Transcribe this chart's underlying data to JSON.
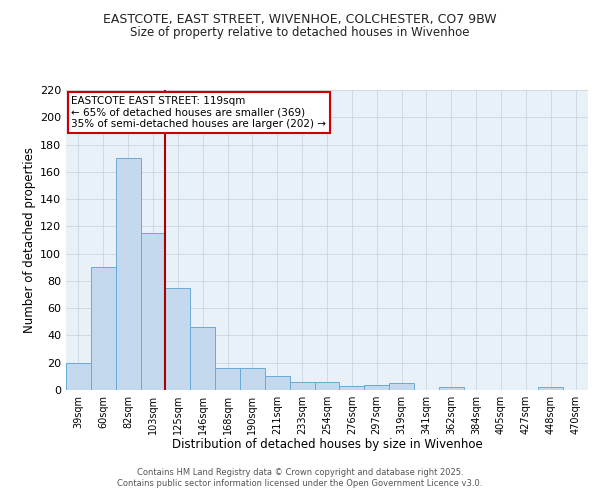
{
  "title_line1": "EASTCOTE, EAST STREET, WIVENHOE, COLCHESTER, CO7 9BW",
  "title_line2": "Size of property relative to detached houses in Wivenhoe",
  "xlabel": "Distribution of detached houses by size in Wivenhoe",
  "ylabel": "Number of detached properties",
  "bin_labels": [
    "39sqm",
    "60sqm",
    "82sqm",
    "103sqm",
    "125sqm",
    "146sqm",
    "168sqm",
    "190sqm",
    "211sqm",
    "233sqm",
    "254sqm",
    "276sqm",
    "297sqm",
    "319sqm",
    "341sqm",
    "362sqm",
    "384sqm",
    "405sqm",
    "427sqm",
    "448sqm",
    "470sqm"
  ],
  "bar_values": [
    20,
    90,
    170,
    115,
    75,
    46,
    16,
    16,
    10,
    6,
    6,
    3,
    4,
    5,
    0,
    2,
    0,
    0,
    0,
    2,
    0
  ],
  "bar_color": "#c5d9ee",
  "bar_edge_color": "#6aaad4",
  "red_line_x": 3.5,
  "annotation_title": "EASTCOTE EAST STREET: 119sqm",
  "annotation_line1": "← 65% of detached houses are smaller (369)",
  "annotation_line2": "35% of semi-detached houses are larger (202) →",
  "annotation_box_color": "#ffffff",
  "annotation_box_edge_color": "#cc0000",
  "red_line_color": "#aa0000",
  "background_color": "#e8f0f8",
  "grid_color": "#c8d0dc",
  "footer_line1": "Contains HM Land Registry data © Crown copyright and database right 2025.",
  "footer_line2": "Contains public sector information licensed under the Open Government Licence v3.0.",
  "ylim": [
    0,
    220
  ],
  "yticks": [
    0,
    20,
    40,
    60,
    80,
    100,
    120,
    140,
    160,
    180,
    200,
    220
  ]
}
